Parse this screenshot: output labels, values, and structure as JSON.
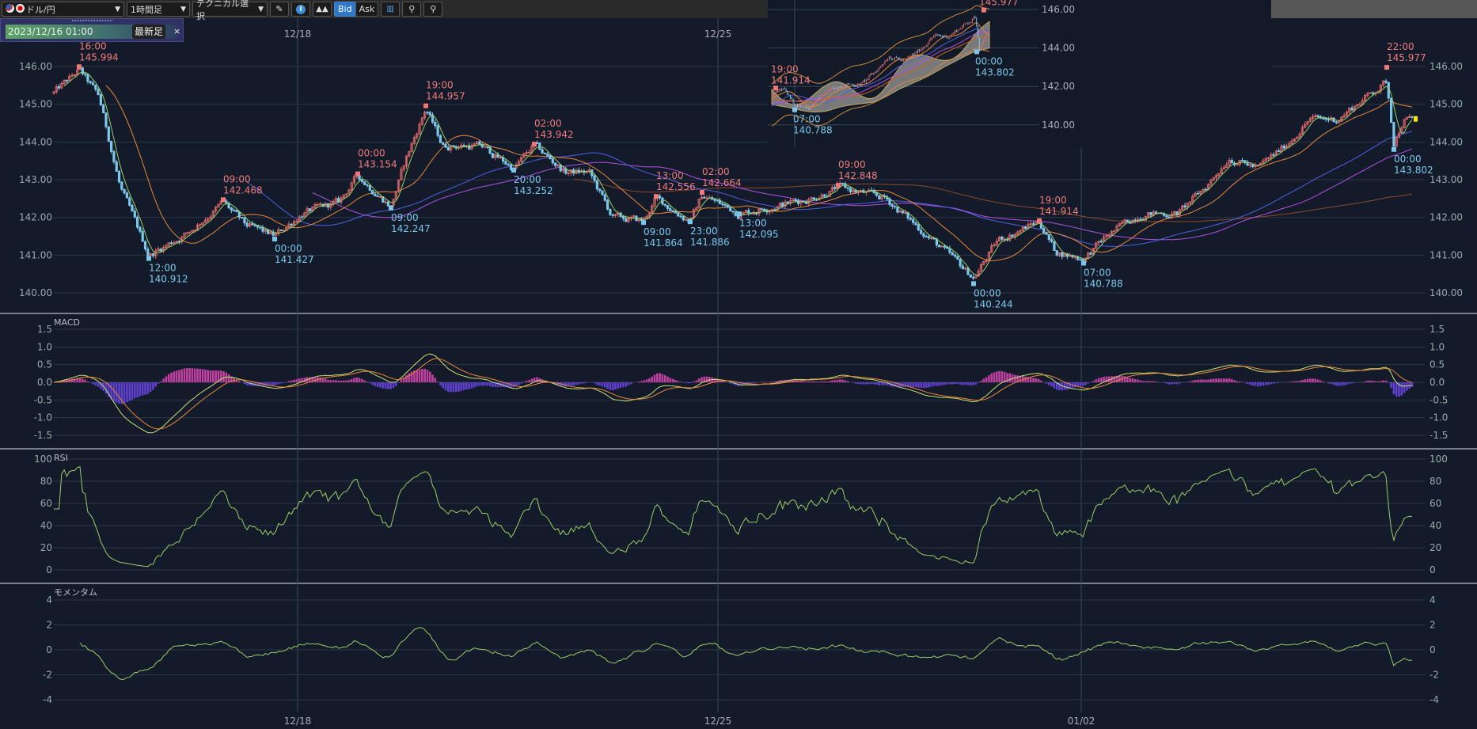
{
  "toolbar": {
    "pair": "ドル/円",
    "timeframe": "1時間足",
    "technical": "テクニカル選択",
    "bid": "Bid",
    "ask": "Ask",
    "icons": [
      "us-flag-icon",
      "jp-flag-icon",
      "pencil-icon",
      "info-icon",
      "area-chart-icon",
      "chart-settings-icon",
      "zoom-out-icon",
      "zoom-in-icon"
    ]
  },
  "date_selector": {
    "value": "2023/12/16 01:00",
    "latest": "最新足",
    "close": "×"
  },
  "colors": {
    "background": "#131b2b",
    "up_candle": "#e06a6a",
    "down_candle": "#7cc8ec",
    "ma_short": "#9ccc65",
    "ma_mid": "#e8873a",
    "ma_long1": "#5060e0",
    "ma_long2": "#b050e0",
    "ma_long3": "#8a4a2a",
    "rsi": "#9ccc65",
    "macd": "#c8e070",
    "signal": "#e8873a",
    "hist_pos": "#c040a0",
    "hist_neg": "#6040d0",
    "high_label": "#f07a7a",
    "low_label": "#7cc8ec"
  },
  "chart_data": [
    {
      "type": "candlestick",
      "panel": "price",
      "yticks": [
        "146.00",
        "145.00",
        "144.00",
        "143.00",
        "142.00",
        "141.00",
        "140.00"
      ],
      "ylim": [
        139.7,
        146.3
      ],
      "xticks_top": [
        "12/18",
        "12/25"
      ],
      "xticks_bottom": [
        "12/18",
        "12/25",
        "01/02"
      ],
      "annotations": [
        {
          "time": "16:00",
          "price": "145.994",
          "kind": "high"
        },
        {
          "time": "12:00",
          "price": "140.912",
          "kind": "low"
        },
        {
          "time": "09:00",
          "price": "142.468",
          "kind": "high"
        },
        {
          "time": "00:00",
          "price": "141.427",
          "kind": "low"
        },
        {
          "time": "00:00",
          "price": "143.154",
          "kind": "high"
        },
        {
          "time": "09:00",
          "price": "142.247",
          "kind": "low"
        },
        {
          "time": "19:00",
          "price": "144.957",
          "kind": "high"
        },
        {
          "time": "20:00",
          "price": "143.252",
          "kind": "low"
        },
        {
          "time": "02:00",
          "price": "143.942",
          "kind": "high"
        },
        {
          "time": "09:00",
          "price": "141.864",
          "kind": "low"
        },
        {
          "time": "13:00",
          "price": "142.556",
          "kind": "high"
        },
        {
          "time": "23:00",
          "price": "141.886",
          "kind": "low"
        },
        {
          "time": "02:00",
          "price": "142.664",
          "kind": "high"
        },
        {
          "time": "13:00",
          "price": "142.095",
          "kind": "low"
        },
        {
          "time": "09:00",
          "price": "142.848",
          "kind": "high"
        },
        {
          "time": "00:00",
          "price": "140.244",
          "kind": "low"
        },
        {
          "time": "19:00",
          "price": "141.914",
          "kind": "high"
        },
        {
          "time": "07:00",
          "price": "140.788",
          "kind": "low"
        },
        {
          "time": "22:00",
          "price": "145.977",
          "kind": "high"
        },
        {
          "time": "00:00",
          "price": "143.802",
          "kind": "low"
        }
      ]
    },
    {
      "type": "line",
      "panel": "macd",
      "title": "MACD",
      "yticks": [
        "1.5",
        "1.0",
        "0.5",
        "0.0",
        "-0.5",
        "-1.0",
        "-1.5"
      ],
      "ylim": [
        -1.7,
        1.7
      ]
    },
    {
      "type": "line",
      "panel": "rsi",
      "title": "RSI",
      "yticks": [
        "100",
        "80",
        "60",
        "40",
        "20",
        "0"
      ],
      "ylim": [
        0,
        100
      ]
    },
    {
      "type": "line",
      "panel": "momentum",
      "title": "モメンタム",
      "yticks": [
        "4",
        "2",
        "0",
        "-2",
        "-4"
      ],
      "ylim": [
        -4.5,
        4.5
      ]
    }
  ],
  "inset": {
    "yticks": [
      "146.00",
      "144.00",
      "142.00",
      "140.00"
    ],
    "annotations": [
      {
        "time": "19:00",
        "price": "141.914",
        "kind": "high"
      },
      {
        "time": "07:00",
        "price": "140.788",
        "kind": "low"
      },
      {
        "time": "",
        "price": "145.977",
        "kind": "high"
      },
      {
        "time": "00:00",
        "price": "143.802",
        "kind": "low"
      }
    ]
  }
}
